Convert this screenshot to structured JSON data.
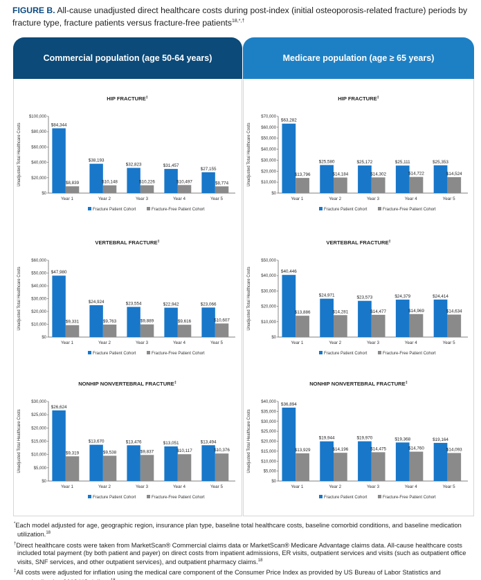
{
  "figure": {
    "label": "FIGURE B.",
    "title": "All-cause unadjusted direct healthcare costs during post-index (initial osteoporosis-related fracture) periods by fracture type, fracture patients versus fracture-free patients",
    "title_refs": "18,*,†"
  },
  "panels": {
    "commercial": {
      "title": "Commercial population (age 50-64 years)"
    },
    "medicare": {
      "title": "Medicare population (age ≥ 65 years)"
    }
  },
  "colors": {
    "fracture": "#1877c9",
    "fracture_free": "#8a8a8a",
    "header_commercial": "#0b4a79",
    "header_medicare": "#1d80c5"
  },
  "chart_data": [
    {
      "id": "comm-hip",
      "type": "bar",
      "title": "HIP FRACTURE",
      "title_ref": "‡",
      "categories": [
        "Year 1",
        "Year 2",
        "Year 3",
        "Year 4",
        "Year 5"
      ],
      "series": [
        {
          "name": "Fracture Patient Cohort",
          "values": [
            84344,
            38193,
            32823,
            31457,
            27155
          ],
          "labels": [
            "$84,344",
            "$38,193",
            "$32,823",
            "$31,457",
            "$27,155"
          ]
        },
        {
          "name": "Fracture-Free Patient Cohort",
          "values": [
            8839,
            10148,
            10226,
            10497,
            8774
          ],
          "labels": [
            "$8,839",
            "$10,148",
            "$10,226",
            "$10,497",
            "$8,774"
          ]
        }
      ],
      "ylabel": "Unadjusted Total Healthcare Costs",
      "ylim": [
        0,
        100000
      ],
      "yticks": [
        "$0",
        "$20,000",
        "$40,000",
        "$60,000",
        "$80,000",
        "$100,000"
      ],
      "legend": "bottom"
    },
    {
      "id": "comm-vert",
      "type": "bar",
      "title": "VERTEBRAL FRACTURE",
      "title_ref": "‡",
      "categories": [
        "Year 1",
        "Year 2",
        "Year 3",
        "Year 4",
        "Year 5"
      ],
      "series": [
        {
          "name": "Fracture Patient Cohort",
          "values": [
            47980,
            24924,
            23554,
            22942,
            23066
          ],
          "labels": [
            "$47,980",
            "$24,924",
            "$23,554",
            "$22,942",
            "$23,066"
          ]
        },
        {
          "name": "Fracture-Free Patient Cohort",
          "values": [
            9331,
            9763,
            9889,
            9616,
            10607
          ],
          "labels": [
            "$9,331",
            "$9,763",
            "$9,889",
            "$9,616",
            "$10,607"
          ]
        }
      ],
      "ylabel": "Unadjusted Total Healthcare Costs",
      "ylim": [
        0,
        60000
      ],
      "yticks": [
        "$0",
        "$10,000",
        "$20,000",
        "$30,000",
        "$40,000",
        "$50,000",
        "$60,000"
      ],
      "legend": "bottom"
    },
    {
      "id": "comm-non",
      "type": "bar",
      "title": "NONHIP NONVERTEBRAL FRACTURE",
      "title_ref": "‡",
      "categories": [
        "Year 1",
        "Year 2",
        "Year 3",
        "Year 4",
        "Year 5"
      ],
      "series": [
        {
          "name": "Fracture Patient Cohort",
          "values": [
            26624,
            13670,
            13476,
            13051,
            13494
          ],
          "labels": [
            "$26,624",
            "$13,670",
            "$13,476",
            "$13,051",
            "$13,494"
          ]
        },
        {
          "name": "Fracture-Free Patient Cohort",
          "values": [
            9319,
            9538,
            9837,
            10117,
            10376
          ],
          "labels": [
            "$9,319",
            "$9,538",
            "$9,837",
            "$10,117",
            "$10,376"
          ]
        }
      ],
      "ylabel": "Unadjusted Total Healthcare Costs",
      "ylim": [
        0,
        30000
      ],
      "yticks": [
        "$0",
        "$5,000",
        "$10,000",
        "$15,000",
        "$20,000",
        "$25,000",
        "$30,000"
      ],
      "legend": "bottom"
    },
    {
      "id": "med-hip",
      "type": "bar",
      "title": "HIP FRACTURE",
      "title_ref": "‡",
      "categories": [
        "Year 1",
        "Year 2",
        "Year 3",
        "Year 4",
        "Year 5"
      ],
      "series": [
        {
          "name": "Fracture Patient Cohort",
          "values": [
            63282,
            25580,
            25172,
            25111,
            25353
          ],
          "labels": [
            "$63,282",
            "$25,580",
            "$25,172",
            "$25,111",
            "$25,353"
          ]
        },
        {
          "name": "Fracture-Free Patient Cohort",
          "values": [
            13796,
            14184,
            14302,
            14722,
            14524
          ],
          "labels": [
            "$13,796",
            "$14,184",
            "$14,302",
            "$14,722",
            "$14,524"
          ]
        }
      ],
      "ylabel": "Unadjusted Total Healthcare Costs",
      "ylim": [
        0,
        70000
      ],
      "yticks": [
        "$0",
        "$10,000",
        "$20,000",
        "$30,000",
        "$40,000",
        "$50,000",
        "$60,000",
        "$70,000"
      ],
      "legend": "bottom"
    },
    {
      "id": "med-vert",
      "type": "bar",
      "title": "VERTEBRAL FRACTURE",
      "title_ref": "‡",
      "categories": [
        "Year 1",
        "Year 2",
        "Year 3",
        "Year 4",
        "Year 5"
      ],
      "series": [
        {
          "name": "Fracture Patient Cohort",
          "values": [
            40446,
            24971,
            23573,
            24379,
            24414
          ],
          "labels": [
            "$40,446",
            "$24,971",
            "$23,573",
            "$24,379",
            "$24,414"
          ]
        },
        {
          "name": "Fracture-Free Patient Cohort",
          "values": [
            13886,
            14281,
            14477,
            14969,
            14634
          ],
          "labels": [
            "$13,886",
            "$14,281",
            "$14,477",
            "$14,969",
            "$14,634"
          ]
        }
      ],
      "ylabel": "Unadjusted Total Healthcare Costs",
      "ylim": [
        0,
        50000
      ],
      "yticks": [
        "$0",
        "$10,000",
        "$20,000",
        "$30,000",
        "$40,000",
        "$50,000"
      ],
      "legend": "bottom"
    },
    {
      "id": "med-non",
      "type": "bar",
      "title": "NONHIP NONVERTEBRAL FRACTURE",
      "title_ref": "‡",
      "categories": [
        "Year 1",
        "Year 2",
        "Year 3",
        "Year 4",
        "Year 5"
      ],
      "series": [
        {
          "name": "Fracture Patient Cohort",
          "values": [
            36894,
            19944,
            19970,
            19368,
            19164
          ],
          "labels": [
            "$36,894",
            "$19,944",
            "$19,970",
            "$19,368",
            "$19,164"
          ]
        },
        {
          "name": "Fracture-Free Patient Cohort",
          "values": [
            13929,
            14196,
            14475,
            14760,
            14093
          ],
          "labels": [
            "$13,929",
            "$14,196",
            "$14,475",
            "$14,760",
            "$14,093"
          ]
        }
      ],
      "ylabel": "Unadjusted Total Healthcare Costs",
      "ylim": [
        0,
        40000
      ],
      "yticks": [
        "$0",
        "$5,000",
        "$10,000",
        "$15,000",
        "$20,000",
        "$25,000",
        "$30,000",
        "$35,000",
        "$40,000"
      ],
      "legend": "bottom"
    }
  ],
  "footnotes": [
    {
      "mark": "*",
      "text": "Each model adjusted for age, geographic region, insurance plan type, baseline total healthcare costs, baseline comorbid conditions, and baseline medication utilization.",
      "ref": "18"
    },
    {
      "mark": "†",
      "text": "Direct healthcare costs were taken from MarketScan® Commercial claims data or MarketScan® Medicare Advantage claims data. All-cause healthcare costs included total payment (by both patient and payer) on direct costs from inpatient admissions, ER visits, outpatient services and visits (such as outpatient office visits, SNF services, and other outpatient services), and outpatient pharmacy claims.",
      "ref": "18"
    },
    {
      "mark": "‡",
      "text": "All costs were adjusted for inflation using the medical care component of the Consumer Price Index as provided by US Bureau of Labor Statistics and standardized to 2018 US dollars.",
      "ref": "18"
    }
  ]
}
